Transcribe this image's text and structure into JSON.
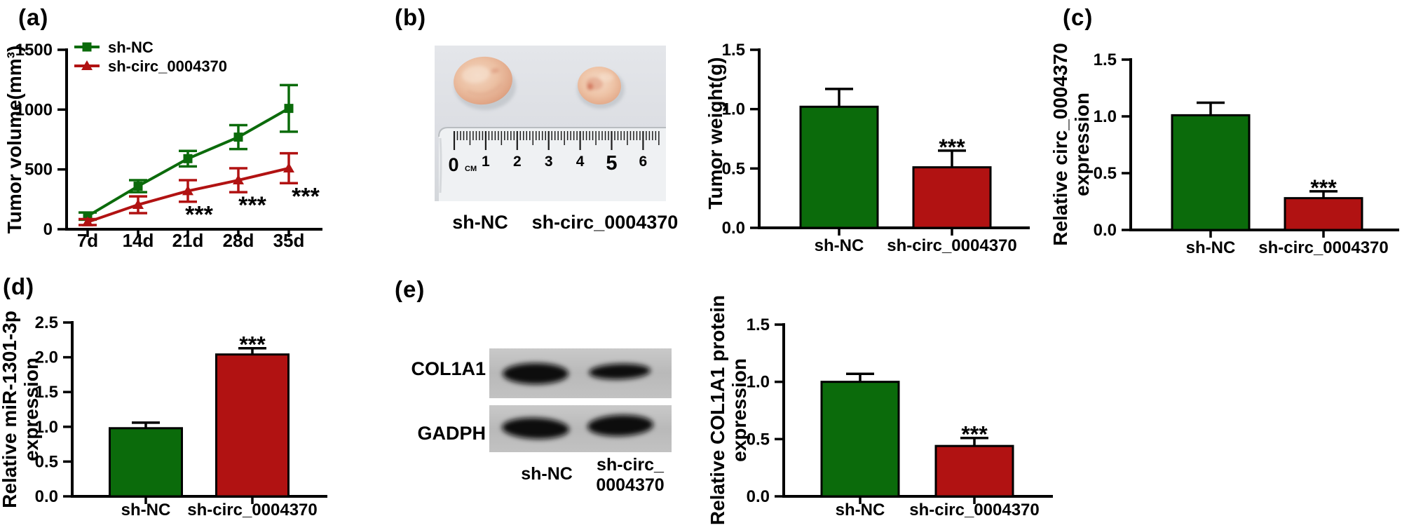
{
  "figure": {
    "panels": [
      {
        "id": "a",
        "label": "(a)"
      },
      {
        "id": "b",
        "label": "(b)"
      },
      {
        "id": "c",
        "label": "(c)"
      },
      {
        "id": "d",
        "label": "(d)"
      },
      {
        "id": "e",
        "label": "(e)"
      }
    ]
  },
  "colors": {
    "green": "#0b6b0b",
    "red": "#b11212",
    "black": "#000000"
  },
  "groups": [
    "sh-NC",
    "sh-circ_0004370"
  ],
  "significance_marker": "***",
  "photo": {
    "group_labels": [
      "sh-NC",
      "sh-circ_0004370"
    ],
    "ruler": {
      "zero_label": "0",
      "unit": "CM",
      "numbers": [
        "1",
        "2",
        "3",
        "4",
        "5",
        "6"
      ]
    }
  },
  "blot": {
    "rows": [
      {
        "label": "COL1A1"
      },
      {
        "label": "GADPH"
      }
    ],
    "lanes": [
      {
        "label_lines": [
          "sh-NC",
          ""
        ]
      },
      {
        "label_lines": [
          "sh-circ_",
          "0004370"
        ]
      }
    ]
  },
  "chart_data": [
    {
      "id": "a-tumor-volume",
      "panel": "a",
      "type": "line",
      "title": "",
      "xlabel": "",
      "ylabel": "Tumor volume(mm³)",
      "x_categories": [
        "7d",
        "14d",
        "21d",
        "28d",
        "35d"
      ],
      "ylim": [
        0,
        1500
      ],
      "yticks": [
        "0",
        "500",
        "1000",
        "1500"
      ],
      "grid": false,
      "legend_position": "top-left",
      "series": [
        {
          "name": "sh-NC",
          "color": "green",
          "marker": "square",
          "values": [
            110,
            360,
            590,
            770,
            1010
          ],
          "errors": [
            30,
            50,
            65,
            100,
            195
          ]
        },
        {
          "name": "sh-circ_0004370",
          "color": "red",
          "marker": "triangle",
          "values": [
            60,
            205,
            320,
            410,
            510
          ],
          "errors": [
            25,
            70,
            90,
            100,
            125
          ]
        }
      ],
      "annotations": [
        {
          "text": "***",
          "x_index": 2,
          "series": 1
        },
        {
          "text": "***",
          "x_index": 3,
          "series": 1
        },
        {
          "text": "***",
          "x_index": 4,
          "series": 1
        }
      ]
    },
    {
      "id": "b-tumor-weight",
      "panel": "b",
      "type": "bar",
      "title": "",
      "xlabel": "",
      "ylabel": "Tumor weight(g)",
      "ylabel_lines": [
        "Tumor weight(g)"
      ],
      "categories": [
        "sh-NC",
        "sh-circ_0004370"
      ],
      "values": [
        1.02,
        0.51
      ],
      "errors": [
        0.15,
        0.14
      ],
      "bar_colors": [
        "green",
        "red"
      ],
      "ylim": [
        0,
        1.5
      ],
      "yticks": [
        "0.0",
        "0.5",
        "1.0",
        "1.5"
      ],
      "grid": false,
      "annotations": [
        {
          "text": "***",
          "x_index": 1
        }
      ]
    },
    {
      "id": "c-circ-expression",
      "panel": "c",
      "type": "bar",
      "title": "",
      "xlabel": "",
      "ylabel": "Relative circ_0004370 expression",
      "ylabel_lines": [
        "Relative circ_0004370",
        "expression"
      ],
      "categories": [
        "sh-NC",
        "sh-circ_0004370"
      ],
      "values": [
        1.01,
        0.28
      ],
      "errors": [
        0.11,
        0.06
      ],
      "bar_colors": [
        "green",
        "red"
      ],
      "ylim": [
        0,
        1.5
      ],
      "yticks": [
        "0.0",
        "0.5",
        "1.0",
        "1.5"
      ],
      "grid": false,
      "annotations": [
        {
          "text": "***",
          "x_index": 1
        }
      ]
    },
    {
      "id": "d-mir-expression",
      "panel": "d",
      "type": "bar",
      "title": "",
      "xlabel": "",
      "ylabel": "Relative miR-1301-3p expression",
      "ylabel_lines": [
        "Relative miR-1301-3p",
        "expression"
      ],
      "categories": [
        "sh-NC",
        "sh-circ_0004370"
      ],
      "values": [
        0.98,
        2.04
      ],
      "errors": [
        0.08,
        0.09
      ],
      "bar_colors": [
        "green",
        "red"
      ],
      "ylim": [
        0,
        2.5
      ],
      "yticks": [
        "0.0",
        "0.5",
        "1.0",
        "1.5",
        "2.0",
        "2.5"
      ],
      "grid": false,
      "annotations": [
        {
          "text": "***",
          "x_index": 1
        }
      ]
    },
    {
      "id": "e-col1a1-protein",
      "panel": "e",
      "type": "bar",
      "title": "",
      "xlabel": "",
      "ylabel": "Relative COL1A1 protein expression",
      "ylabel_lines": [
        "Relative COL1A1 protein",
        "expression"
      ],
      "categories": [
        "sh-NC",
        "sh-circ_0004370"
      ],
      "values": [
        1.0,
        0.44
      ],
      "errors": [
        0.07,
        0.07
      ],
      "bar_colors": [
        "green",
        "red"
      ],
      "ylim": [
        0,
        1.5
      ],
      "yticks": [
        "0.0",
        "0.5",
        "1.0",
        "1.5"
      ],
      "grid": false,
      "annotations": [
        {
          "text": "***",
          "x_index": 1
        }
      ]
    }
  ]
}
